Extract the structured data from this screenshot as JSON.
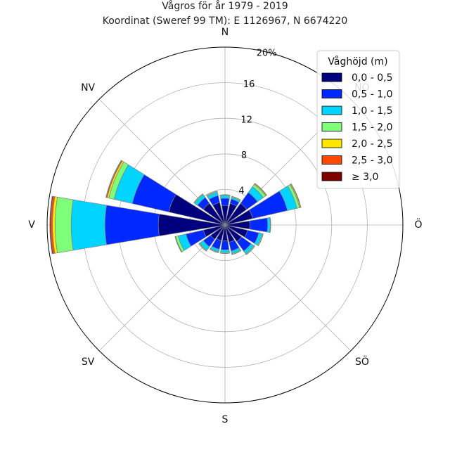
{
  "chart_data": {
    "type": "windrose",
    "title": "Vågros för år 1979 - 2019",
    "subtitle": "Koordinat (Sweref 99 TM): E 1126967, N 6674220",
    "directions": [
      "N",
      "NNÖ",
      "NÖ",
      "ÖNÖ",
      "Ö",
      "ÖSÖ",
      "SÖ",
      "SSÖ",
      "S",
      "SSV",
      "SV",
      "VSV",
      "V",
      "VNV",
      "NV",
      "NNV"
    ],
    "compass_labels": [
      "N",
      "NÖ",
      "Ö",
      "SÖ",
      "S",
      "SV",
      "V",
      "NV"
    ],
    "radial_ticks": [
      4,
      8,
      12,
      16
    ],
    "radial_max_label": "20%",
    "rmax": 20,
    "legend": {
      "title": "Våghöjd (m)",
      "placement": "top-right",
      "entries": [
        "0,0 - 0,5",
        "0,5 - 1,0",
        "1,0 - 1,5",
        "1,5 - 2,0",
        "2,0 - 2,5",
        "2,5 - 3,0",
        "≥ 3,0"
      ]
    },
    "colors": [
      "#00007f",
      "#0029ff",
      "#00d4ff",
      "#7dff7a",
      "#ffe600",
      "#ff4700",
      "#7f0000"
    ],
    "series": [
      {
        "name": "0,0 - 0,5",
        "values": [
          2.2,
          2.5,
          3.0,
          3.2,
          2.8,
          2.6,
          2.3,
          2.0,
          1.8,
          1.8,
          2.0,
          2.5,
          7.5,
          6.5,
          3.0,
          2.6
        ]
      },
      {
        "name": "0,5 - 1,0",
        "values": [
          0.8,
          0.5,
          1.5,
          4.0,
          2.0,
          1.3,
          1.3,
          1.0,
          1.0,
          1.0,
          1.0,
          2.0,
          6.0,
          4.2,
          0.8,
          0.8
        ]
      },
      {
        "name": "1,0 - 1,5",
        "values": [
          0.3,
          0.2,
          0.8,
          1.1,
          0.3,
          0.4,
          0.4,
          0.3,
          0.3,
          0.3,
          0.5,
          0.9,
          3.8,
          2.1,
          0.4,
          0.4
        ]
      },
      {
        "name": "1,5 - 2,0",
        "values": [
          0.1,
          0.1,
          0.3,
          0.3,
          0.05,
          0.1,
          0.1,
          0.1,
          0.1,
          0.1,
          0.1,
          0.3,
          1.8,
          0.6,
          0.1,
          0.1
        ]
      },
      {
        "name": "2,0 - 2,5",
        "values": [
          0.02,
          0.02,
          0.1,
          0.1,
          0.0,
          0.02,
          0.02,
          0.02,
          0.02,
          0.02,
          0.02,
          0.05,
          0.3,
          0.2,
          0.02,
          0.02
        ]
      },
      {
        "name": "2,5 - 3,0",
        "values": [
          0.0,
          0.0,
          0.05,
          0.05,
          0.0,
          0.0,
          0.0,
          0.0,
          0.0,
          0.0,
          0.0,
          0.02,
          0.2,
          0.1,
          0.0,
          0.0
        ]
      },
      {
        "name": "≥ 3,0",
        "values": [
          0.0,
          0.0,
          0.02,
          0.02,
          0.0,
          0.0,
          0.0,
          0.0,
          0.0,
          0.0,
          0.0,
          0.0,
          0.1,
          0.05,
          0.0,
          0.0
        ]
      }
    ]
  }
}
